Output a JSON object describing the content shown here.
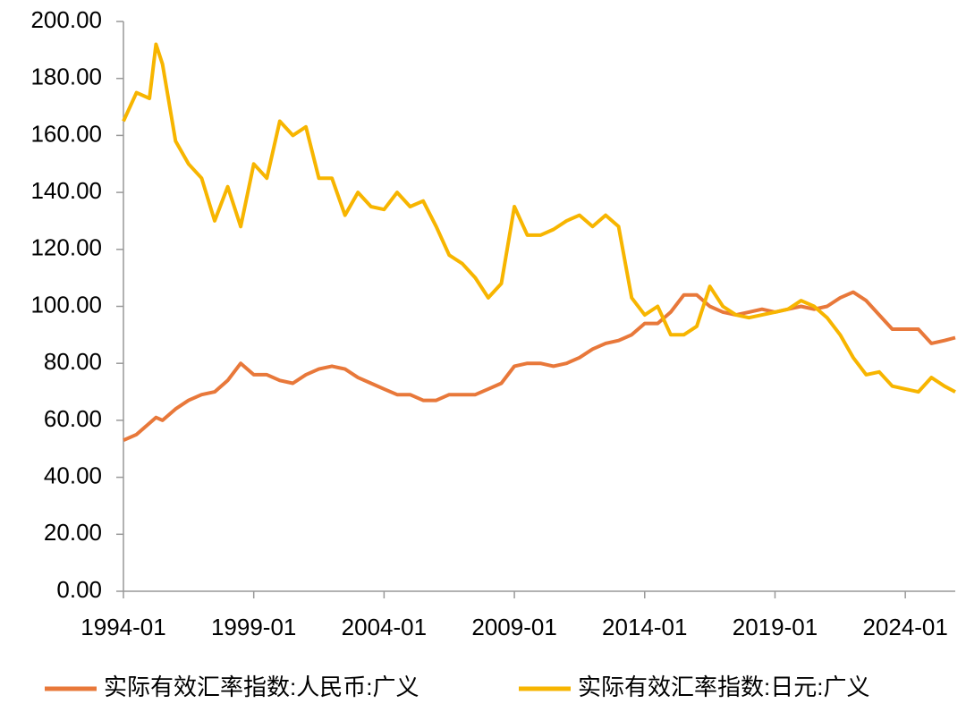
{
  "chart_data": {
    "type": "line",
    "x": [
      "1994-01",
      "1994-07",
      "1995-01",
      "1995-04",
      "1995-07",
      "1996-01",
      "1996-07",
      "1997-01",
      "1997-07",
      "1998-01",
      "1998-07",
      "1999-01",
      "1999-07",
      "2000-01",
      "2000-07",
      "2001-01",
      "2001-07",
      "2002-01",
      "2002-07",
      "2003-01",
      "2003-07",
      "2004-01",
      "2004-07",
      "2005-01",
      "2005-07",
      "2006-01",
      "2006-07",
      "2007-01",
      "2007-07",
      "2008-01",
      "2008-07",
      "2009-01",
      "2009-07",
      "2010-01",
      "2010-07",
      "2011-01",
      "2011-07",
      "2012-01",
      "2012-07",
      "2013-01",
      "2013-07",
      "2014-01",
      "2014-07",
      "2015-01",
      "2015-07",
      "2016-01",
      "2016-07",
      "2017-01",
      "2017-07",
      "2018-01",
      "2018-07",
      "2019-01",
      "2019-07",
      "2020-01",
      "2020-07",
      "2021-01",
      "2021-07",
      "2022-01",
      "2022-07",
      "2023-01",
      "2023-07",
      "2024-01",
      "2024-07",
      "2025-01",
      "2025-07",
      "2025-12"
    ],
    "series": [
      {
        "name": "实际有效汇率指数:人民币:广义",
        "color": "#e8783a",
        "values": [
          53,
          55,
          59,
          61,
          60,
          64,
          67,
          69,
          70,
          74,
          80,
          76,
          76,
          74,
          73,
          76,
          78,
          79,
          78,
          75,
          73,
          71,
          69,
          69,
          67,
          67,
          69,
          69,
          69,
          71,
          73,
          79,
          80,
          80,
          79,
          80,
          82,
          85,
          87,
          88,
          90,
          94,
          94,
          98,
          104,
          104,
          100,
          98,
          97,
          98,
          99,
          98,
          99,
          100,
          99,
          100,
          103,
          105,
          102,
          97,
          92,
          92,
          92,
          87,
          88,
          89
        ]
      },
      {
        "name": "实际有效汇率指数:日元:广义",
        "color": "#f7b500",
        "values": [
          165,
          175,
          173,
          192,
          185,
          158,
          150,
          145,
          130,
          142,
          128,
          150,
          145,
          165,
          160,
          163,
          145,
          145,
          132,
          140,
          135,
          134,
          140,
          135,
          137,
          128,
          118,
          115,
          110,
          103,
          108,
          135,
          125,
          125,
          127,
          130,
          132,
          128,
          132,
          128,
          103,
          97,
          100,
          90,
          90,
          93,
          107,
          100,
          97,
          96,
          97,
          98,
          99,
          102,
          100,
          96,
          90,
          82,
          76,
          77,
          72,
          71,
          70,
          75,
          72,
          70
        ]
      }
    ],
    "xlim": [
      "1994-01",
      "2025-12"
    ],
    "xticks": [
      "1994-01",
      "1999-01",
      "2004-01",
      "2009-01",
      "2014-01",
      "2019-01",
      "2024-01"
    ],
    "ylim": [
      0,
      200
    ],
    "yticks": [
      {
        "value": 0,
        "label": "0.00"
      },
      {
        "value": 20,
        "label": "20.00"
      },
      {
        "value": 40,
        "label": "40.00"
      },
      {
        "value": 60,
        "label": "60.00"
      },
      {
        "value": 80,
        "label": "80.00"
      },
      {
        "value": 100,
        "label": "100.00"
      },
      {
        "value": 120,
        "label": "120.00"
      },
      {
        "value": 140,
        "label": "140.00"
      },
      {
        "value": 160,
        "label": "160.00"
      },
      {
        "value": 180,
        "label": "180.00"
      },
      {
        "value": 200,
        "label": "200.00"
      }
    ]
  }
}
